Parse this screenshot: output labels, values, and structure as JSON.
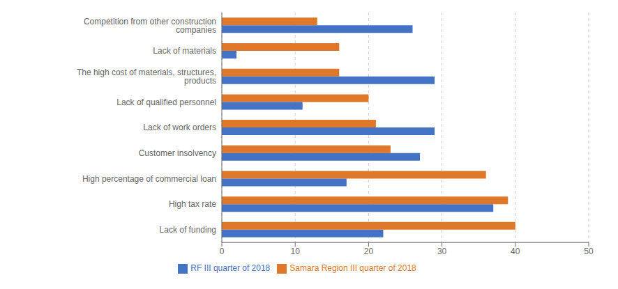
{
  "chart_data": {
    "type": "bar",
    "orientation": "horizontal",
    "categories": [
      "Lack of funding",
      "High tax rate",
      "High percentage of commercial loan",
      "Customer insolvency",
      "Lack of work orders",
      "Lack of qualified personnel",
      "The high cost of materials, structures, products",
      "Lack of materials",
      "Competition from other construction companies"
    ],
    "series": [
      {
        "name": "Samara Region III quarter of 2018",
        "color": "#E07829",
        "values": [
          40,
          39,
          36,
          23,
          21,
          20,
          16,
          16,
          13
        ]
      },
      {
        "name": "RF III quarter of 2018",
        "color": "#4472C4",
        "values": [
          22,
          37,
          17,
          27,
          29,
          11,
          29,
          2,
          26
        ]
      }
    ],
    "xlim": [
      0,
      50
    ],
    "xticks": [
      0,
      10,
      20,
      30,
      40,
      50
    ],
    "grid": true,
    "legend": "bottom"
  }
}
